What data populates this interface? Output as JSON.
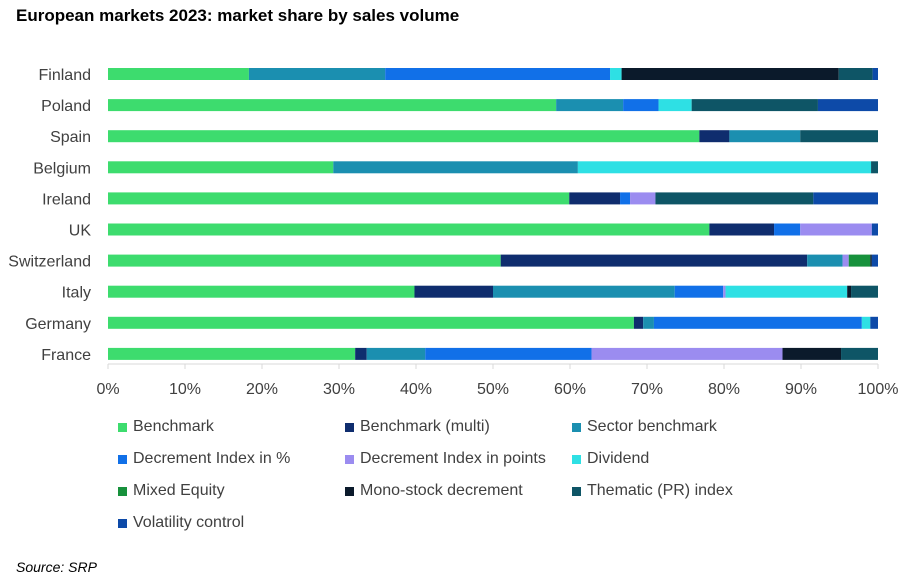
{
  "title": "European markets 2023: market share by sales volume",
  "source": "Source: SRP",
  "chart_data": {
    "type": "bar",
    "orientation": "horizontal",
    "stacked": "percent",
    "categories": [
      "Finland",
      "Poland",
      "Spain",
      "Belgium",
      "Ireland",
      "UK",
      "Switzerland",
      "Italy",
      "Germany",
      "France"
    ],
    "x_ticks": [
      "0%",
      "10%",
      "20%",
      "30%",
      "40%",
      "50%",
      "60%",
      "70%",
      "80%",
      "90%",
      "100%"
    ],
    "xlim": [
      0,
      100
    ],
    "grid": false,
    "legend_position": "bottom",
    "series": [
      {
        "name": "Benchmark",
        "color": "#3ddc6e",
        "values": [
          18.3,
          58.2,
          76.8,
          29.2,
          59.9,
          78.1,
          51.0,
          39.8,
          68.3,
          32.1
        ]
      },
      {
        "name": "Benchmark (multi)",
        "color": "#0f2d6e",
        "values": [
          0,
          0,
          3.9,
          0,
          6.6,
          8.4,
          39.8,
          10.2,
          1.2,
          1.5
        ]
      },
      {
        "name": "Sector benchmark",
        "color": "#1b8fb0",
        "values": [
          17.7,
          8.7,
          9.2,
          31.7,
          0,
          0,
          4.6,
          23.6,
          1.4,
          7.6
        ]
      },
      {
        "name": "Decrement Index in %",
        "color": "#1170e8",
        "values": [
          29.2,
          4.6,
          0,
          0,
          1.3,
          3.4,
          0,
          6.3,
          27.0,
          21.6
        ]
      },
      {
        "name": "Decrement Index in points",
        "color": "#9b8cf0",
        "values": [
          0,
          0,
          0,
          0,
          3.3,
          9.3,
          0.8,
          0.3,
          0,
          24.8
        ]
      },
      {
        "name": "Dividend",
        "color": "#2ee0e4",
        "values": [
          1.5,
          4.3,
          0,
          38.0,
          0,
          0,
          0,
          15.8,
          1.1,
          0
        ]
      },
      {
        "name": "Mixed Equity",
        "color": "#17913c",
        "values": [
          0,
          0,
          0,
          0,
          0,
          0,
          2.8,
          0,
          0,
          0
        ]
      },
      {
        "name": "Mono-stock decrement",
        "color": "#0b1a2b",
        "values": [
          28.2,
          0,
          0,
          0,
          0,
          0,
          0.2,
          0.5,
          0,
          7.6
        ]
      },
      {
        "name": "Thematic (PR) index",
        "color": "#0e5566",
        "values": [
          4.4,
          16.4,
          10.1,
          0.9,
          20.5,
          0,
          0,
          3.5,
          0,
          4.8
        ]
      },
      {
        "name": "Volatility control",
        "color": "#0d4aa8",
        "values": [
          0.7,
          7.8,
          0,
          0,
          8.4,
          0.8,
          0.8,
          0,
          1.0,
          0
        ]
      }
    ]
  }
}
